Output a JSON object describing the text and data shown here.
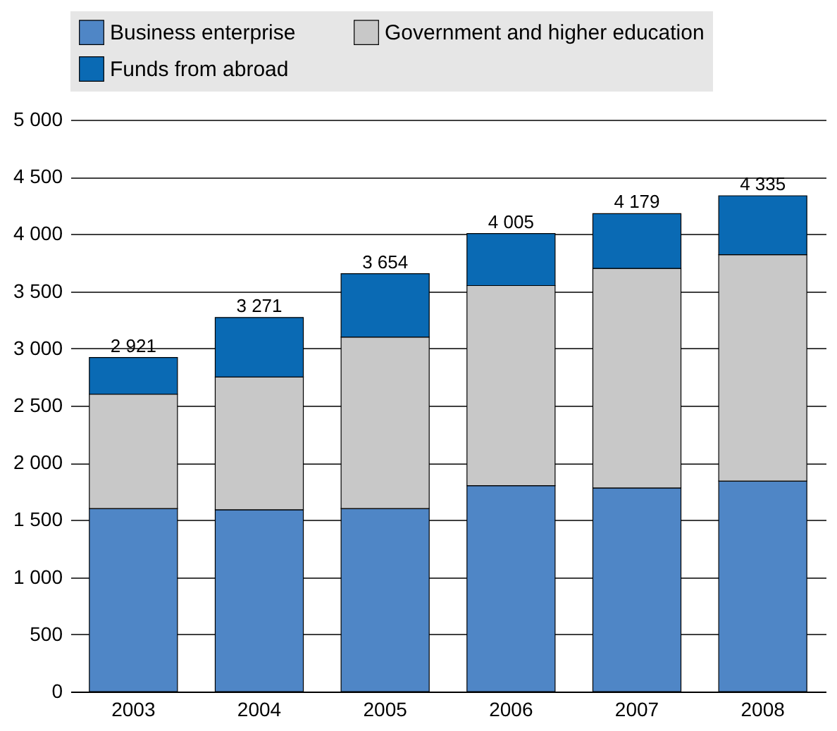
{
  "chart_data": {
    "type": "bar",
    "stacked": true,
    "categories": [
      "2003",
      "2004",
      "2005",
      "2006",
      "2007",
      "2008"
    ],
    "series": [
      {
        "name": "Business enterprise",
        "color": "#4f86c6",
        "values": [
          1600,
          1590,
          1600,
          1800,
          1780,
          1840
        ]
      },
      {
        "name": "Government and higher education",
        "color": "#c8c8c8",
        "values": [
          1000,
          1160,
          1500,
          1750,
          1920,
          1980
        ]
      },
      {
        "name": "Funds from abroad",
        "color": "#0a6ab4",
        "values": [
          321,
          521,
          554,
          455,
          479,
          515
        ]
      }
    ],
    "totals": [
      "2 921",
      "3 271",
      "3 654",
      "4 005",
      "4 179",
      "4 335"
    ],
    "ylim": [
      0,
      5000
    ],
    "yticks": [
      0,
      500,
      {
        "value": 1000,
        "label": "1 000"
      },
      {
        "value": 1500,
        "label": "1 500"
      },
      {
        "value": 2000,
        "label": "2 000"
      },
      {
        "value": 2500,
        "label": "2 500"
      },
      {
        "value": 3000,
        "label": "3 000"
      },
      {
        "value": 3500,
        "label": "3 500"
      },
      {
        "value": 4000,
        "label": "4 000"
      },
      {
        "value": 4500,
        "label": "4 500"
      },
      {
        "value": 5000,
        "label": "5 000"
      }
    ],
    "grid": "y",
    "legend": "top"
  }
}
